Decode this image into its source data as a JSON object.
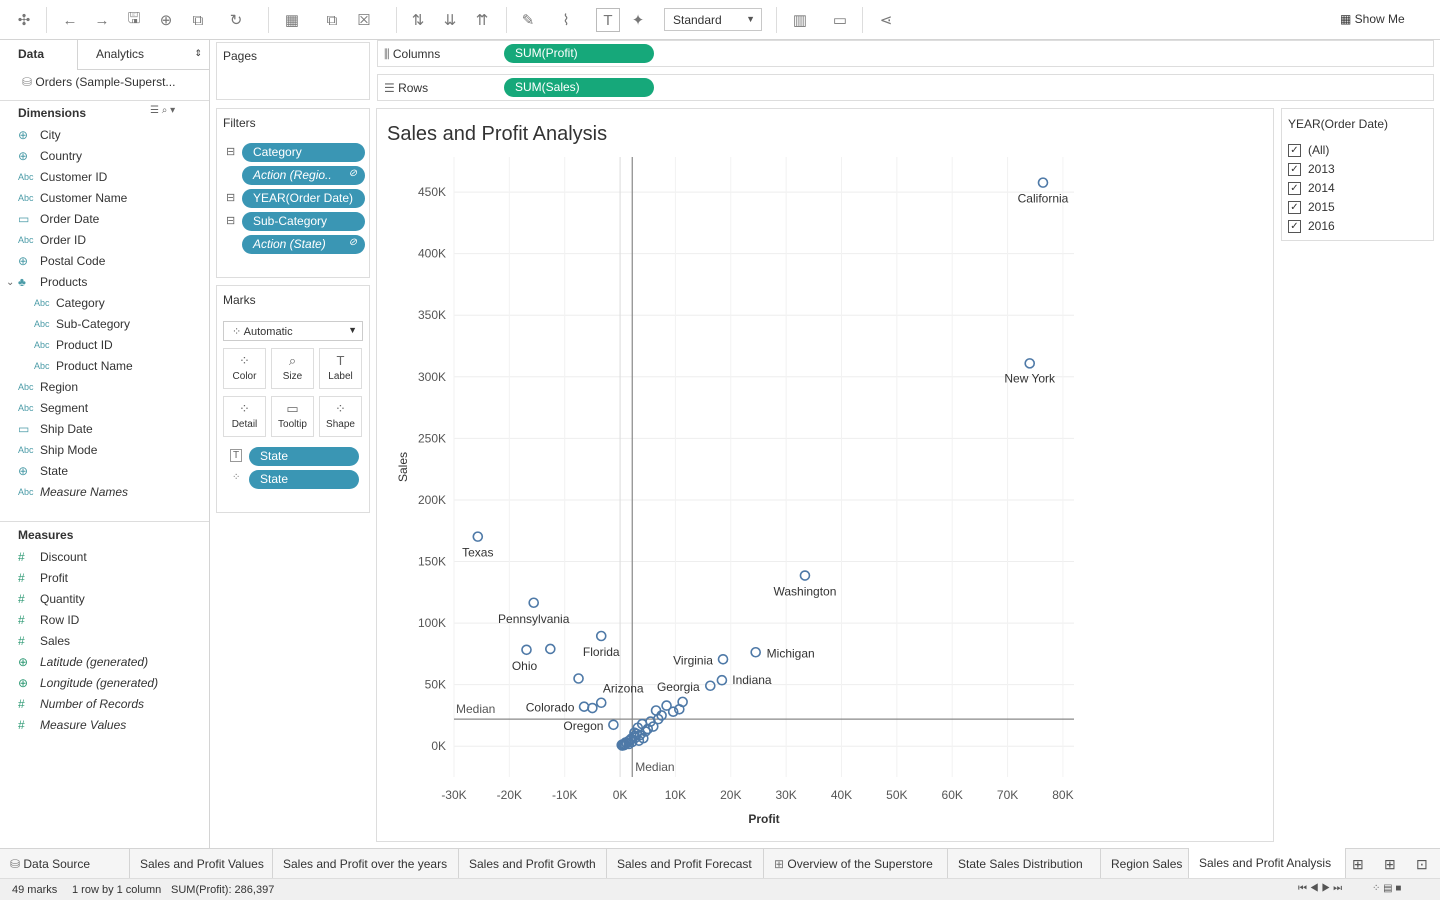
{
  "toolbar": {
    "fit": "Standard",
    "show_me": "Show Me"
  },
  "left_panel": {
    "tab_data": "Data",
    "tab_analytics": "Analytics",
    "datasource": "Orders (Sample-Superst...",
    "dimensions_header": "Dimensions",
    "dimensions": [
      {
        "label": "City",
        "type": "globe"
      },
      {
        "label": "Country",
        "type": "globe"
      },
      {
        "label": "Customer ID",
        "type": "Abc"
      },
      {
        "label": "Customer Name",
        "type": "Abc"
      },
      {
        "label": "Order Date",
        "type": "calendar"
      },
      {
        "label": "Order ID",
        "type": "Abc"
      },
      {
        "label": "Postal Code",
        "type": "globe"
      },
      {
        "label": "Products",
        "type": "hierarchy"
      },
      {
        "label": "Category",
        "type": "Abc"
      },
      {
        "label": "Sub-Category",
        "type": "Abc"
      },
      {
        "label": "Product ID",
        "type": "Abc"
      },
      {
        "label": "Product Name",
        "type": "Abc"
      },
      {
        "label": "Region",
        "type": "Abc"
      },
      {
        "label": "Segment",
        "type": "Abc"
      },
      {
        "label": "Ship Date",
        "type": "calendar"
      },
      {
        "label": "Ship Mode",
        "type": "Abc"
      },
      {
        "label": "State",
        "type": "globe"
      },
      {
        "label": "Measure Names",
        "type": "Abc"
      }
    ],
    "measures_header": "Measures",
    "measures": [
      {
        "label": "Discount",
        "type": "#"
      },
      {
        "label": "Profit",
        "type": "#"
      },
      {
        "label": "Quantity",
        "type": "#"
      },
      {
        "label": "Row ID",
        "type": "#"
      },
      {
        "label": "Sales",
        "type": "#"
      },
      {
        "label": "Latitude (generated)",
        "type": "globe"
      },
      {
        "label": "Longitude (generated)",
        "type": "globe"
      },
      {
        "label": "Number of Records",
        "type": "#"
      },
      {
        "label": "Measure Values",
        "type": "#"
      }
    ]
  },
  "pages": {
    "title": "Pages"
  },
  "filters": {
    "title": "Filters",
    "items": [
      "Category",
      "Action (Regio..",
      "YEAR(Order Date)",
      "Sub-Category",
      "Action (State)"
    ]
  },
  "marks": {
    "title": "Marks",
    "type": "Automatic",
    "buttons": [
      "Color",
      "Size",
      "Label",
      "Detail",
      "Tooltip",
      "Shape"
    ],
    "pills": [
      "State",
      "State"
    ]
  },
  "shelves": {
    "columns_label": "Columns",
    "columns_pill": "SUM(Profit)",
    "rows_label": "Rows",
    "rows_pill": "SUM(Sales)"
  },
  "legend": {
    "title": "YEAR(Order Date)",
    "items": [
      "(All)",
      "2013",
      "2014",
      "2015",
      "2016"
    ]
  },
  "sheets": [
    "Data Source",
    "Sales and Profit Values",
    "Sales and Profit over the years",
    "Sales and Profit Growth",
    "Sales and Profit Forecast",
    "Overview of the Superstore",
    "State Sales Distribution",
    "Region Sales",
    "Sales and Profit Analysis"
  ],
  "status": {
    "marks": "49 marks",
    "rows": "1 row by 1 column",
    "sum": "SUM(Profit): 286,397"
  },
  "chart_data": {
    "type": "scatter",
    "title": "Sales and Profit Analysis",
    "xlabel": "Profit",
    "ylabel": "Sales",
    "xlim": [
      -30000,
      82000
    ],
    "ylim": [
      -25000,
      485000
    ],
    "xticks": [
      "-30K",
      "-20K",
      "-10K",
      "0K",
      "10K",
      "20K",
      "30K",
      "40K",
      "50K",
      "60K",
      "70K",
      "80K"
    ],
    "xtick_values": [
      -30000,
      -20000,
      -10000,
      0,
      10000,
      20000,
      30000,
      40000,
      50000,
      60000,
      70000,
      80000
    ],
    "yticks": [
      "0K",
      "50K",
      "100K",
      "150K",
      "200K",
      "250K",
      "300K",
      "350K",
      "400K",
      "450K"
    ],
    "ytick_values": [
      0,
      50000,
      100000,
      150000,
      200000,
      250000,
      300000,
      350000,
      400000,
      450000
    ],
    "median_x": 2200,
    "median_y": 22000,
    "median_label": "Median",
    "point_color": "#4e79a7",
    "points": [
      {
        "label": "California",
        "x": 76400,
        "y": 457700
      },
      {
        "label": "New York",
        "x": 74000,
        "y": 310900
      },
      {
        "label": "Texas",
        "x": -25700,
        "y": 170200
      },
      {
        "label": "Washington",
        "x": 33400,
        "y": 138600
      },
      {
        "label": "Pennsylvania",
        "x": -15600,
        "y": 116500
      },
      {
        "label": "Florida",
        "x": -3400,
        "y": 89500
      },
      {
        "label": "Ohio",
        "x": -16900,
        "y": 78300
      },
      {
        "label": "",
        "x": -12600,
        "y": 79000
      },
      {
        "label": "Michigan",
        "x": 24500,
        "y": 76300
      },
      {
        "label": "Virginia",
        "x": 18600,
        "y": 70600
      },
      {
        "label": "Indiana",
        "x": 18400,
        "y": 53600
      },
      {
        "label": "",
        "x": -7500,
        "y": 55000
      },
      {
        "label": "Georgia",
        "x": 16300,
        "y": 49100
      },
      {
        "label": "Arizona",
        "x": -3400,
        "y": 35300
      },
      {
        "label": "Colorado",
        "x": -6500,
        "y": 32100
      },
      {
        "label": "",
        "x": -5000,
        "y": 31000
      },
      {
        "label": "",
        "x": 11300,
        "y": 36000
      },
      {
        "label": "",
        "x": 10700,
        "y": 30000
      },
      {
        "label": "",
        "x": 8400,
        "y": 33000
      },
      {
        "label": "",
        "x": 9600,
        "y": 28000
      },
      {
        "label": "",
        "x": 6500,
        "y": 29000
      },
      {
        "label": "",
        "x": 7500,
        "y": 25000
      },
      {
        "label": "",
        "x": 6900,
        "y": 22000
      },
      {
        "label": "",
        "x": 5500,
        "y": 20000
      },
      {
        "label": "Oregon",
        "x": -1200,
        "y": 17400
      },
      {
        "label": "",
        "x": 4000,
        "y": 18000
      },
      {
        "label": "",
        "x": 3200,
        "y": 15000
      },
      {
        "label": "",
        "x": 4600,
        "y": 12000
      },
      {
        "label": "",
        "x": 3000,
        "y": 10000
      },
      {
        "label": "",
        "x": 2500,
        "y": 8000
      },
      {
        "label": "",
        "x": 2000,
        "y": 6000
      },
      {
        "label": "",
        "x": 1500,
        "y": 4000
      },
      {
        "label": "",
        "x": 1000,
        "y": 3000
      },
      {
        "label": "",
        "x": 800,
        "y": 2000
      },
      {
        "label": "",
        "x": 500,
        "y": 1500
      },
      {
        "label": "",
        "x": 300,
        "y": 1000
      },
      {
        "label": "",
        "x": 1800,
        "y": 5000
      },
      {
        "label": "",
        "x": 2800,
        "y": 7000
      },
      {
        "label": "",
        "x": 3600,
        "y": 9000
      },
      {
        "label": "",
        "x": 1200,
        "y": 2500
      },
      {
        "label": "",
        "x": 2200,
        "y": 3500
      },
      {
        "label": "",
        "x": 3400,
        "y": 4500
      },
      {
        "label": "",
        "x": 4200,
        "y": 6500
      },
      {
        "label": "",
        "x": 5000,
        "y": 14000
      },
      {
        "label": "",
        "x": 1600,
        "y": 1800
      },
      {
        "label": "",
        "x": 2600,
        "y": 11000
      },
      {
        "label": "",
        "x": 700,
        "y": 800
      },
      {
        "label": "",
        "x": 400,
        "y": 500
      },
      {
        "label": "",
        "x": 6000,
        "y": 16000
      }
    ]
  }
}
